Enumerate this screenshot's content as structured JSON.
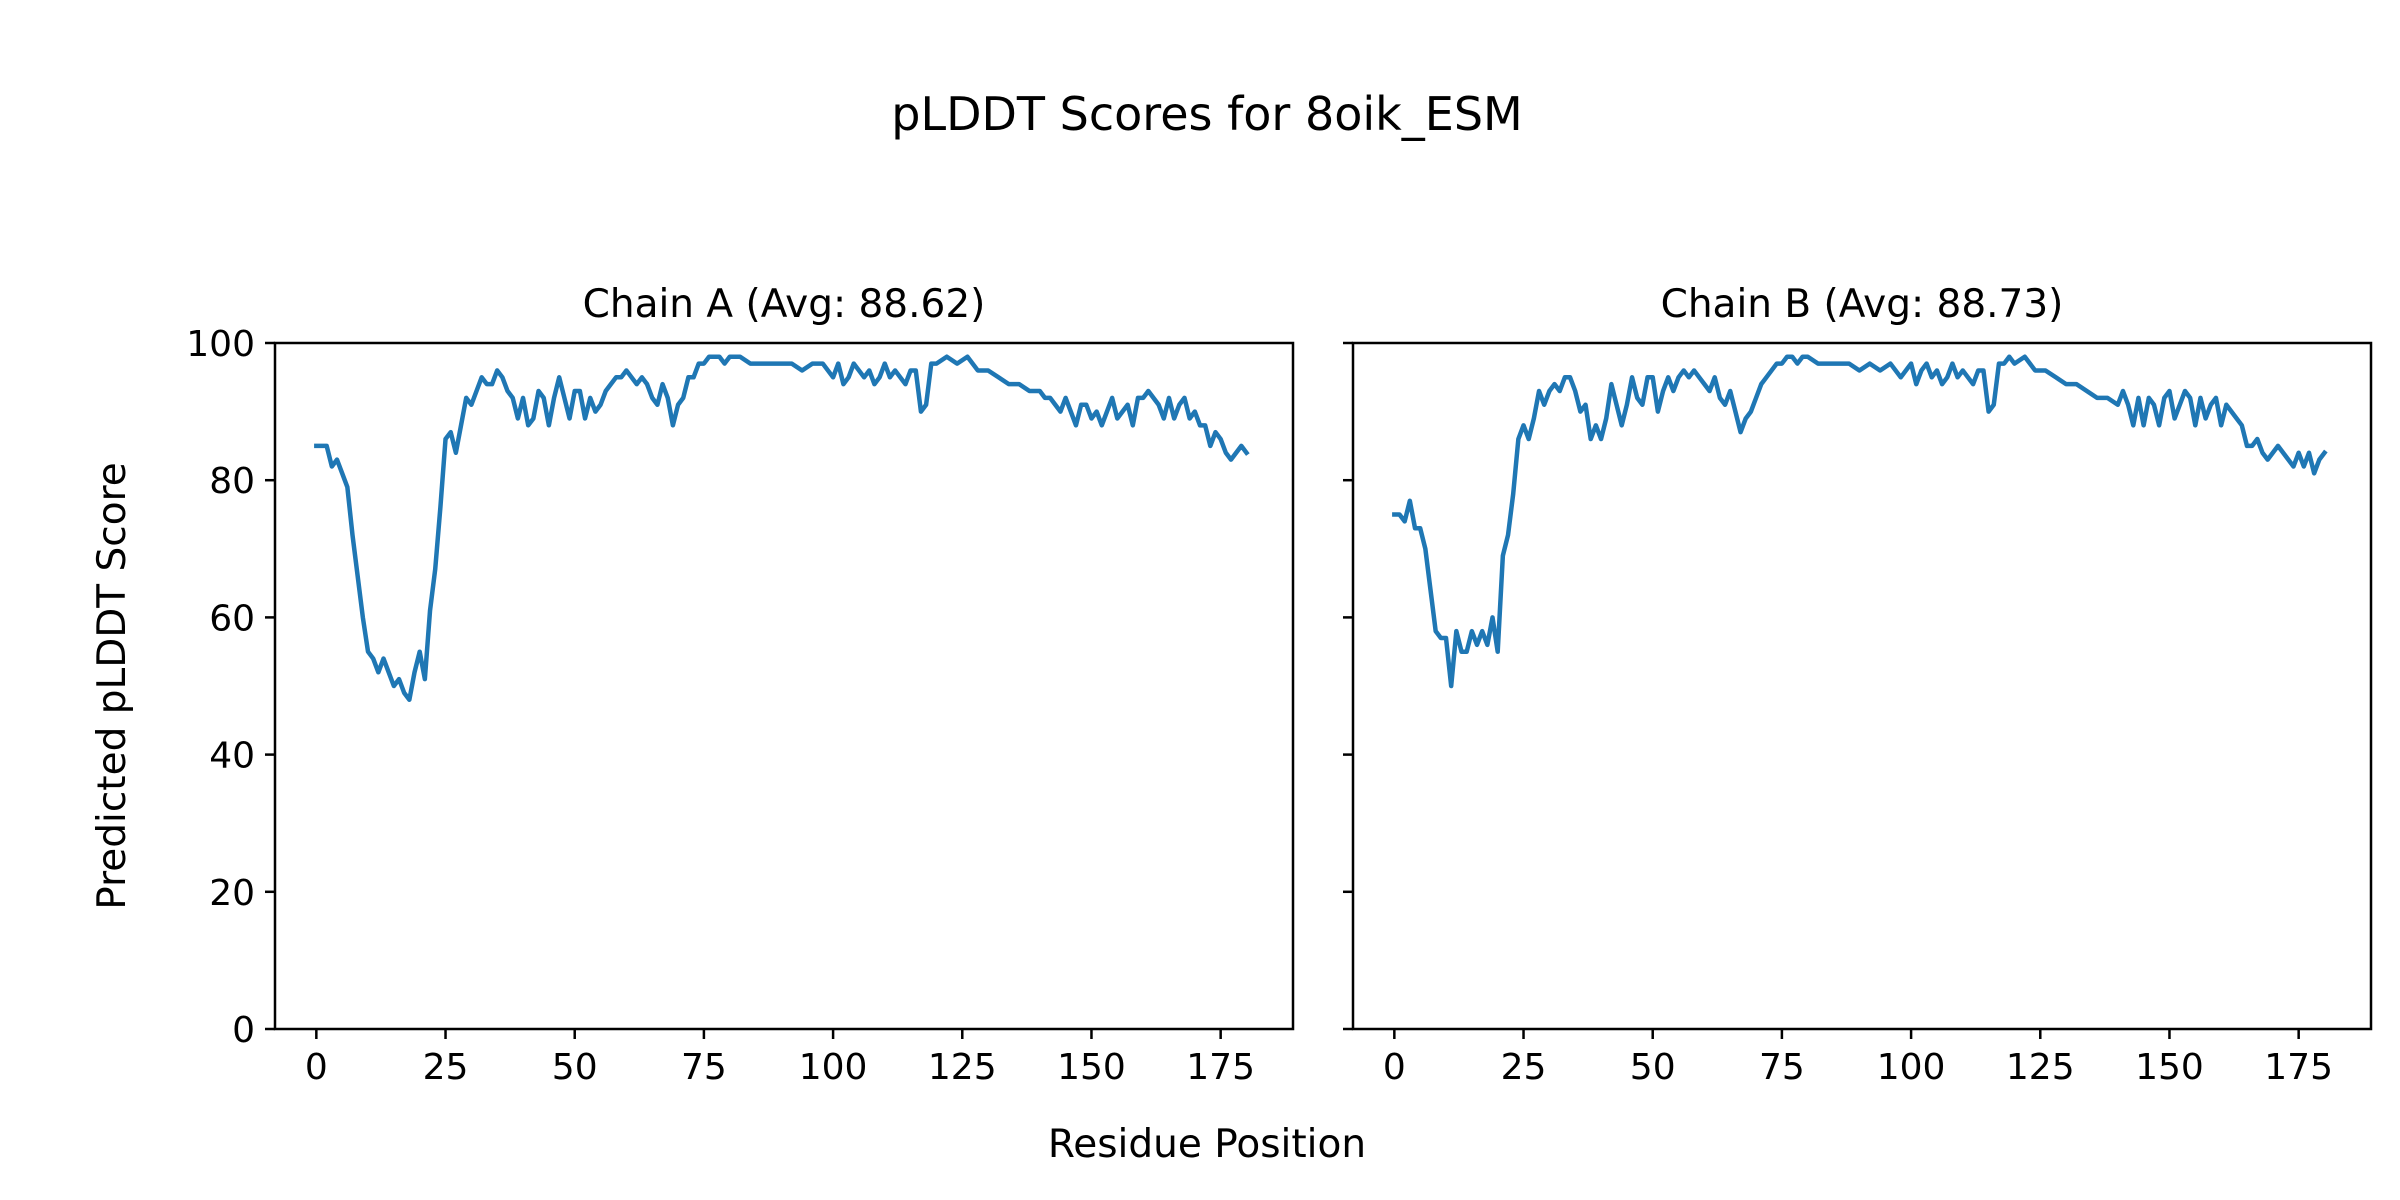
{
  "figure": {
    "title": "pLDDT Scores for 8oik_ESM",
    "xlabel": "Residue Position",
    "ylabel": "Predicted pLDDT Score"
  },
  "chart_data": [
    {
      "type": "line",
      "title": "Chain A (Avg: 88.62)",
      "xlabel": "Residue Position",
      "ylabel": "Predicted pLDDT Score",
      "xlim": [
        -8,
        189
      ],
      "ylim": [
        0,
        100
      ],
      "xticks": [
        0,
        25,
        50,
        75,
        100,
        125,
        150,
        175
      ],
      "yticks": [
        0,
        20,
        40,
        60,
        80,
        100
      ],
      "grid": false,
      "color": "#1f77b4",
      "x": [
        0,
        2,
        3,
        4,
        5,
        6,
        7,
        8,
        9,
        10,
        11,
        12,
        13,
        14,
        15,
        16,
        17,
        18,
        19,
        20,
        21,
        22,
        23,
        24,
        25,
        26,
        27,
        28,
        29,
        30,
        31,
        32,
        33,
        34,
        35,
        36,
        37,
        38,
        39,
        40,
        41,
        42,
        43,
        44,
        45,
        46,
        47,
        48,
        49,
        50,
        51,
        52,
        53,
        54,
        55,
        56,
        57,
        58,
        59,
        60,
        61,
        62,
        63,
        64,
        65,
        66,
        67,
        68,
        69,
        70,
        71,
        72,
        73,
        74,
        75,
        76,
        77,
        78,
        79,
        80,
        82,
        84,
        86,
        88,
        90,
        92,
        94,
        96,
        98,
        100,
        101,
        102,
        103,
        104,
        105,
        106,
        107,
        108,
        109,
        110,
        111,
        112,
        113,
        114,
        115,
        116,
        117,
        118,
        119,
        120,
        122,
        124,
        126,
        128,
        130,
        132,
        134,
        136,
        138,
        140,
        141,
        142,
        143,
        144,
        145,
        146,
        147,
        148,
        149,
        150,
        151,
        152,
        153,
        154,
        155,
        156,
        157,
        158,
        159,
        160,
        161,
        162,
        163,
        164,
        165,
        166,
        167,
        168,
        169,
        170,
        171,
        172,
        173,
        174,
        175,
        176,
        177,
        178,
        179,
        180
      ],
      "y": [
        85,
        85,
        82,
        83,
        81,
        79,
        72,
        66,
        60,
        55,
        54,
        52,
        54,
        52,
        50,
        51,
        49,
        48,
        52,
        55,
        51,
        61,
        67,
        76,
        86,
        87,
        84,
        88,
        92,
        91,
        93,
        95,
        94,
        94,
        96,
        95,
        93,
        92,
        89,
        92,
        88,
        89,
        93,
        92,
        88,
        92,
        95,
        92,
        89,
        93,
        93,
        89,
        92,
        90,
        91,
        93,
        94,
        95,
        95,
        96,
        95,
        94,
        95,
        94,
        92,
        91,
        94,
        92,
        88,
        91,
        92,
        95,
        95,
        97,
        97,
        98,
        98,
        98,
        97,
        98,
        98,
        97,
        97,
        97,
        97,
        97,
        96,
        97,
        97,
        95,
        97,
        94,
        95,
        97,
        96,
        95,
        96,
        94,
        95,
        97,
        95,
        96,
        95,
        94,
        96,
        96,
        90,
        91,
        97,
        97,
        98,
        97,
        98,
        96,
        96,
        95,
        94,
        94,
        93,
        93,
        92,
        92,
        91,
        90,
        92,
        90,
        88,
        91,
        91,
        89,
        90,
        88,
        90,
        92,
        89,
        90,
        91,
        88,
        92,
        92,
        93,
        92,
        91,
        89,
        92,
        89,
        91,
        92,
        89,
        90,
        88,
        88,
        85,
        87,
        86,
        84,
        83,
        84,
        85,
        84
      ]
    },
    {
      "type": "line",
      "title": "Chain B (Avg: 88.73)",
      "xlabel": "Residue Position",
      "ylabel": "",
      "xlim": [
        -8,
        189
      ],
      "ylim": [
        0,
        100
      ],
      "xticks": [
        0,
        25,
        50,
        75,
        100,
        125,
        150,
        175
      ],
      "yticks": [
        0,
        20,
        40,
        60,
        80,
        100
      ],
      "grid": false,
      "color": "#1f77b4",
      "x": [
        0,
        1,
        2,
        3,
        4,
        5,
        6,
        7,
        8,
        9,
        10,
        11,
        12,
        13,
        14,
        15,
        16,
        17,
        18,
        19,
        20,
        21,
        22,
        23,
        24,
        25,
        26,
        27,
        28,
        29,
        30,
        31,
        32,
        33,
        34,
        35,
        36,
        37,
        38,
        39,
        40,
        41,
        42,
        43,
        44,
        45,
        46,
        47,
        48,
        49,
        50,
        51,
        52,
        53,
        54,
        55,
        56,
        57,
        58,
        59,
        60,
        61,
        62,
        63,
        64,
        65,
        66,
        67,
        68,
        69,
        70,
        71,
        72,
        73,
        74,
        75,
        76,
        77,
        78,
        79,
        80,
        82,
        84,
        86,
        88,
        90,
        92,
        94,
        96,
        98,
        100,
        101,
        102,
        103,
        104,
        105,
        106,
        107,
        108,
        109,
        110,
        111,
        112,
        113,
        114,
        115,
        116,
        117,
        118,
        119,
        120,
        122,
        124,
        126,
        128,
        130,
        132,
        134,
        136,
        138,
        140,
        141,
        142,
        143,
        144,
        145,
        146,
        147,
        148,
        149,
        150,
        151,
        152,
        153,
        154,
        155,
        156,
        157,
        158,
        159,
        160,
        161,
        162,
        163,
        164,
        165,
        166,
        167,
        168,
        169,
        170,
        171,
        172,
        173,
        174,
        175,
        176,
        177,
        178,
        179,
        180
      ],
      "y": [
        75,
        75,
        74,
        77,
        73,
        73,
        70,
        64,
        58,
        57,
        57,
        50,
        58,
        55,
        55,
        58,
        56,
        58,
        56,
        60,
        55,
        69,
        72,
        78,
        86,
        88,
        86,
        89,
        93,
        91,
        93,
        94,
        93,
        95,
        95,
        93,
        90,
        91,
        86,
        88,
        86,
        89,
        94,
        91,
        88,
        91,
        95,
        92,
        91,
        95,
        95,
        90,
        93,
        95,
        93,
        95,
        96,
        95,
        96,
        95,
        94,
        93,
        95,
        92,
        91,
        93,
        90,
        87,
        89,
        90,
        92,
        94,
        95,
        96,
        97,
        97,
        98,
        98,
        97,
        98,
        98,
        97,
        97,
        97,
        97,
        96,
        97,
        96,
        97,
        95,
        97,
        94,
        96,
        97,
        95,
        96,
        94,
        95,
        97,
        95,
        96,
        95,
        94,
        96,
        96,
        90,
        91,
        97,
        97,
        98,
        97,
        98,
        96,
        96,
        95,
        94,
        94,
        93,
        92,
        92,
        91,
        93,
        91,
        88,
        92,
        88,
        92,
        91,
        88,
        92,
        93,
        89,
        91,
        93,
        92,
        88,
        92,
        89,
        91,
        92,
        88,
        91,
        90,
        89,
        88,
        85,
        85,
        86,
        84,
        83,
        84,
        85,
        84,
        83,
        82,
        84,
        82,
        84,
        81,
        83,
        84
      ]
    }
  ]
}
